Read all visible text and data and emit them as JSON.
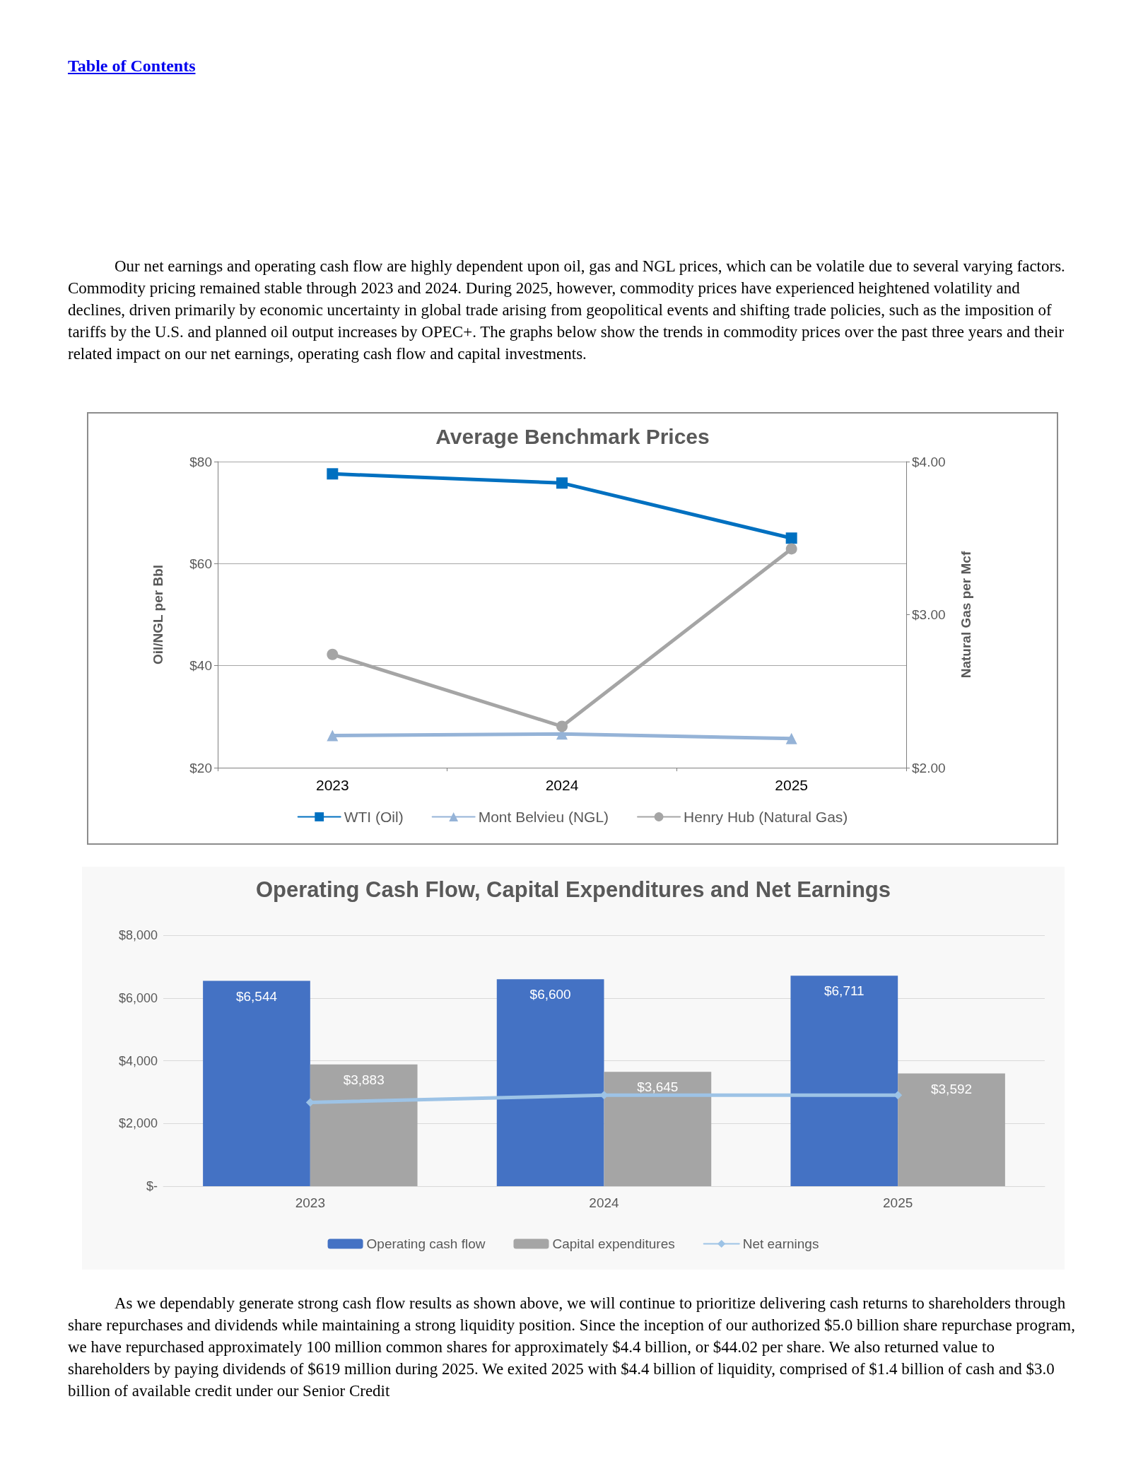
{
  "chart_data": [
    {
      "type": "line",
      "title": "Average Benchmark Prices",
      "ylabel": "Oil/NGL per Bbl",
      "y2label": "Natural Gas per Mcf",
      "annotations": [
        "Table of Contents",
        "Our net earnings and operating cash flow are highly dependent upon oil, gas and NGL prices, which can be volatile due to several varying factors. Commodity pricing remained stable through 2023 and 2024. During 2025, however, commodity prices have experienced heightened volatility and declines, driven primarily by economic uncertainty in global trade arising from geopolitical events and shifting trade policies, such as the imposition of tariffs by the U.S. and planned oil output increases by OPEC+. The graphs below show the trends in commodity prices over the past three years and their related impact on our net earnings, operating cash flow and capital investments."
      ],
      "categories": [
        "2023",
        "2024",
        "2025"
      ],
      "series": [
        {
          "name": "WTI (Oil)",
          "color": "#0070c0",
          "marker": "square",
          "values": [
            77.6,
            75.8,
            65.0
          ]
        },
        {
          "name": "Mont Belvieu (NGL)",
          "color": "#95b3d7",
          "marker": "triangle",
          "values": [
            26.3,
            26.6,
            25.7
          ]
        },
        {
          "name": "Henry Hub (Natural Gas)",
          "color": "#a5a5a5",
          "marker": "circle",
          "axis": "y2",
          "values": [
            2.74,
            2.27,
            3.43
          ]
        }
      ],
      "ylim": [
        20,
        80
      ],
      "yticks": [
        {
          "value": 20,
          "label": "$20"
        },
        {
          "value": 40,
          "label": "$40"
        },
        {
          "value": 60,
          "label": "$60"
        },
        {
          "value": 80,
          "label": "$80"
        }
      ],
      "y2lim": [
        2,
        4
      ],
      "y2ticks": [
        {
          "value": 2,
          "label": "$2.00"
        },
        {
          "value": 3,
          "label": "$3.00"
        },
        {
          "value": 4,
          "label": "$4.00"
        }
      ],
      "grid": "y",
      "legend": "bottom"
    },
    {
      "type": "bar",
      "title": "Operating Cash Flow, Capital Expenditures and Net Earnings",
      "annotations": [
        "As we dependably generate strong cash flow results as shown above, we will continue to prioritize delivering cash returns to shareholders through share repurchases and dividends while maintaining a strong liquidity position. Since the inception of our authorized $5.0 billion share repurchase program, we have repurchased approximately 100 million common shares for approximately $4.4 billion, or $44.02 per share. We also returned value to shareholders by paying dividends of $619 million during 2025. We exited 2025 with $4.4 billion of liquidity, comprised of $1.4 billion of cash and $3.0 billion of available credit under our Senior Credit"
      ],
      "categories": [
        "2023",
        "2024",
        "2025"
      ],
      "series": [
        {
          "name": "Operating cash flow",
          "color": "#4472c4",
          "values": [
            6544,
            6600,
            6711
          ],
          "value_labels": [
            "$6,544",
            "$6,600",
            "$6,711"
          ]
        },
        {
          "name": "Capital expenditures",
          "color": "#a5a5a5",
          "values": [
            3883,
            3645,
            3592
          ],
          "value_labels": [
            "$3,883",
            "$3,645",
            "$3,592"
          ]
        },
        {
          "name": "Net earnings",
          "type": "line",
          "color": "#9dc3e6",
          "marker": "diamond",
          "values": [
            2670,
            2900,
            2900
          ]
        }
      ],
      "ylim": [
        0,
        8000
      ],
      "yticks": [
        {
          "value": 0,
          "label": "$-"
        },
        {
          "value": 2000,
          "label": "$2,000"
        },
        {
          "value": 4000,
          "label": "$4,000"
        },
        {
          "value": 6000,
          "label": "$6,000"
        },
        {
          "value": 8000,
          "label": "$8,000"
        }
      ],
      "grid": "y",
      "legend": "bottom"
    }
  ]
}
